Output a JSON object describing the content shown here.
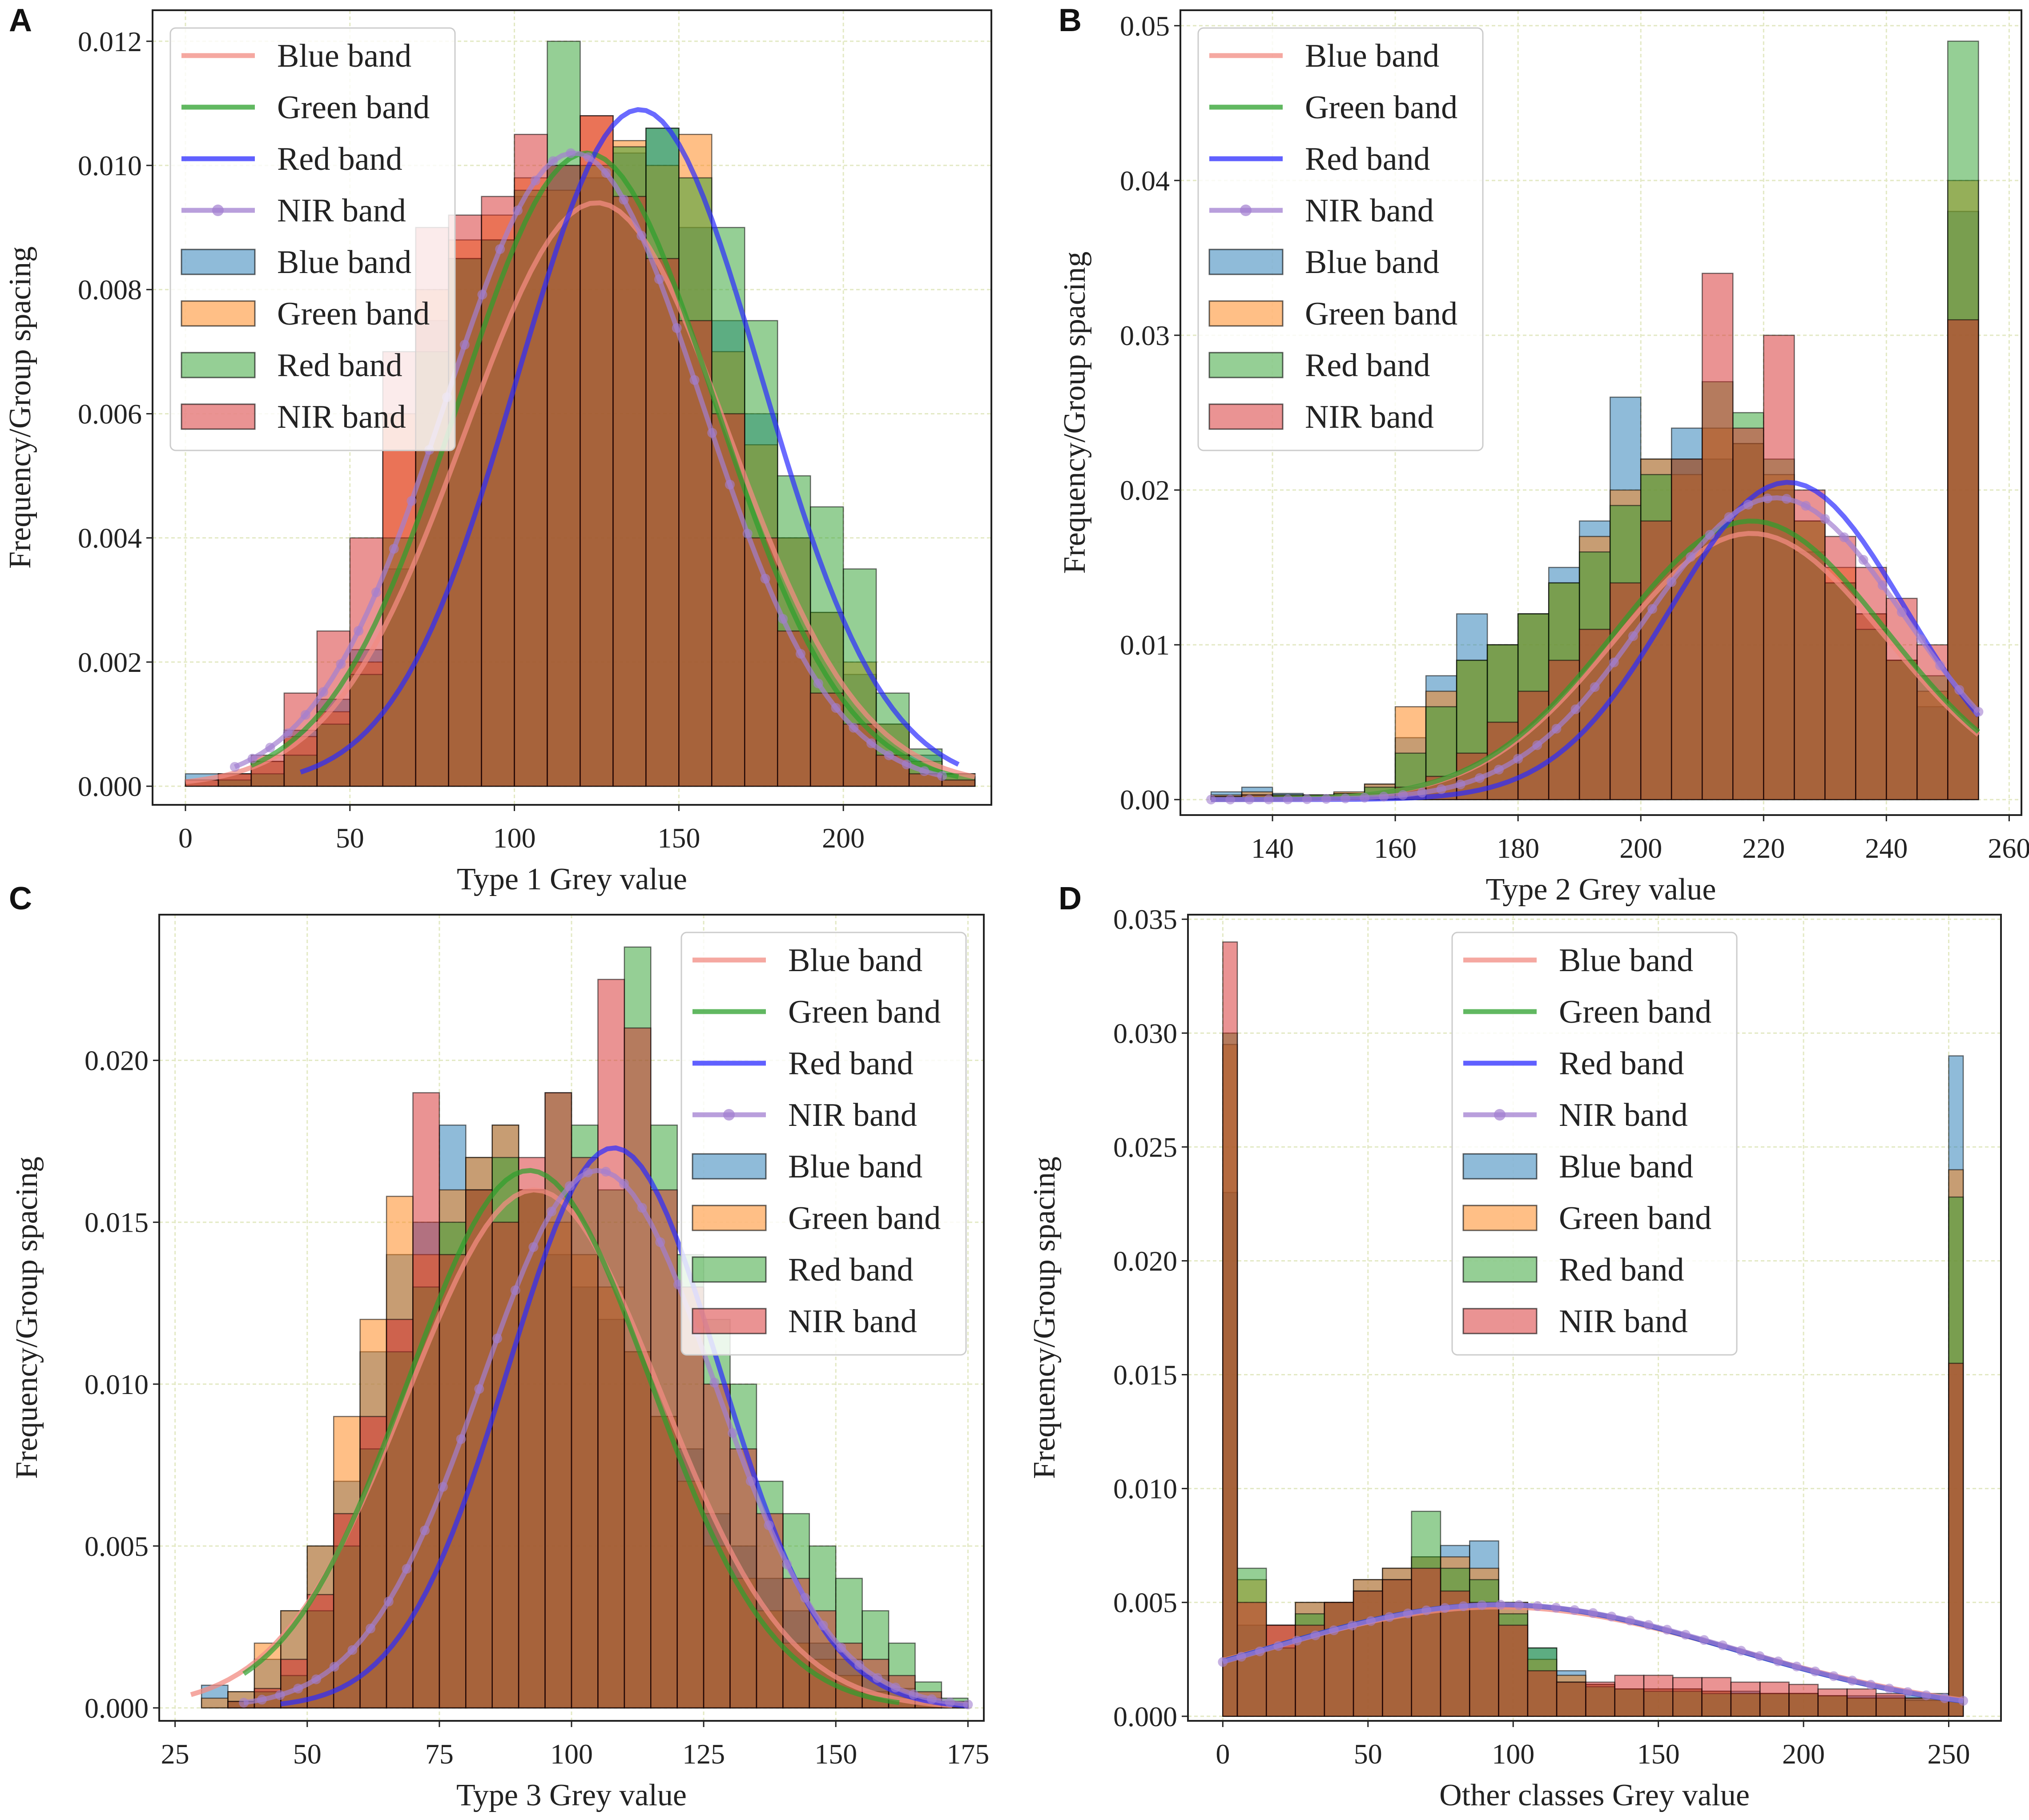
{
  "colors": {
    "hist": [
      "#1f77b4",
      "#ff7f0e",
      "#2ca02c",
      "#d62728"
    ],
    "curve": [
      "#f28b82",
      "#2ca02c",
      "#2b2bff",
      "#a27fd0"
    ],
    "grid": "#e3e9c4"
  },
  "chart_data": [
    {
      "panel": "A",
      "type": "bar",
      "xlabel": "Type 1 Grey value",
      "ylabel": "Frequency/Group spacing",
      "xlim": [
        -10,
        245
      ],
      "ylim": [
        -0.0003,
        0.0125
      ],
      "xticks": [
        "0",
        "50",
        "100",
        "150",
        "200"
      ],
      "yticks": [
        "0.000",
        "0.002",
        "0.004",
        "0.006",
        "0.008",
        "0.010",
        "0.012"
      ],
      "legend_position": "upper-left",
      "legend": [
        "Blue band",
        "Green band",
        "Red band",
        "NIR band",
        "Blue band",
        "Green band",
        "Red band",
        "NIR band"
      ],
      "bin_edges": [
        0,
        10,
        20,
        30,
        40,
        50,
        60,
        70,
        80,
        90,
        100,
        110,
        120,
        130,
        140,
        150,
        160,
        170,
        180,
        190,
        200,
        210,
        220,
        230,
        240
      ],
      "hist_series": [
        {
          "name": "Blue band",
          "values": [
            0.0002,
            0.0002,
            0.0004,
            0.0009,
            0.0014,
            0.0022,
            0.0035,
            0.0075,
            0.0085,
            0.0088,
            0.0095,
            0.01,
            0.0098,
            0.0102,
            0.0106,
            0.009,
            0.0075,
            0.006,
            0.004,
            0.0028,
            0.0018,
            0.001,
            0.0005,
            0.0002
          ]
        },
        {
          "name": "Green band",
          "values": [
            0.0001,
            0.0002,
            0.0004,
            0.0008,
            0.0012,
            0.002,
            0.006,
            0.008,
            0.0088,
            0.0092,
            0.0098,
            0.0096,
            0.0108,
            0.0104,
            0.01,
            0.0105,
            0.007,
            0.0055,
            0.004,
            0.0028,
            0.002,
            0.001,
            0.0004,
            0.0002
          ]
        },
        {
          "name": "Red band",
          "values": [
            0,
            0.0001,
            0.0002,
            0.0005,
            0.001,
            0.0018,
            0.004,
            0.007,
            0.0085,
            0.0088,
            0.0096,
            0.012,
            0.01,
            0.0103,
            0.0106,
            0.0098,
            0.009,
            0.0075,
            0.005,
            0.0045,
            0.0035,
            0.0015,
            0.0006,
            0.0002
          ]
        },
        {
          "name": "NIR band",
          "values": [
            0.0001,
            0.0002,
            0.0005,
            0.0015,
            0.0025,
            0.004,
            0.007,
            0.009,
            0.0092,
            0.0095,
            0.0105,
            0.01,
            0.0108,
            0.0095,
            0.0085,
            0.0075,
            0.006,
            0.004,
            0.0025,
            0.0015,
            0.001,
            0.0005,
            0.0002,
            0.0001
          ]
        }
      ],
      "fit_curves": [
        {
          "name": "Blue band",
          "mean": 125,
          "std": 40,
          "peak": 0.0094,
          "x_range": [
            0,
            240
          ]
        },
        {
          "name": "Green band",
          "mean": 122,
          "std": 39,
          "peak": 0.0102,
          "x_range": [
            20,
            235
          ]
        },
        {
          "name": "Red band",
          "mean": 138,
          "std": 37,
          "peak": 0.0109,
          "x_range": [
            35,
            235
          ]
        },
        {
          "name": "NIR band",
          "mean": 118,
          "std": 39,
          "peak": 0.0102,
          "x_range": [
            15,
            230
          ]
        }
      ]
    },
    {
      "panel": "B",
      "type": "bar",
      "xlabel": "Type 2 Grey value",
      "ylabel": "Frequency/Group spacing",
      "xlim": [
        125,
        262
      ],
      "ylim": [
        -0.001,
        0.051
      ],
      "xticks": [
        "140",
        "160",
        "180",
        "200",
        "220",
        "240",
        "260"
      ],
      "yticks": [
        "0.00",
        "0.01",
        "0.02",
        "0.03",
        "0.04",
        "0.05"
      ],
      "legend_position": "upper-left",
      "legend": [
        "Blue band",
        "Green band",
        "Red band",
        "NIR band",
        "Blue band",
        "Green band",
        "Red band",
        "NIR band"
      ],
      "bin_edges": [
        130,
        135,
        140,
        145,
        150,
        155,
        160,
        165,
        170,
        175,
        180,
        185,
        190,
        195,
        200,
        205,
        210,
        215,
        220,
        225,
        230,
        235,
        240,
        245,
        250,
        255
      ],
      "hist_series": [
        {
          "name": "Blue band",
          "values": [
            0.0005,
            0.0008,
            0.0004,
            0.0003,
            0.0004,
            0.001,
            0.004,
            0.008,
            0.012,
            0.01,
            0.012,
            0.015,
            0.018,
            0.026,
            0.022,
            0.024,
            0.022,
            0.023,
            0.02,
            0.016,
            0.014,
            0.012,
            0.009,
            0.006,
            0.038
          ]
        },
        {
          "name": "Green band",
          "values": [
            0.0003,
            0.0005,
            0.0003,
            0.0003,
            0.0005,
            0.001,
            0.006,
            0.007,
            0.009,
            0.01,
            0.012,
            0.014,
            0.017,
            0.02,
            0.022,
            0.021,
            0.024,
            0.023,
            0.021,
            0.018,
            0.015,
            0.012,
            0.009,
            0.007,
            0.04
          ]
        },
        {
          "name": "Red band",
          "values": [
            0.0002,
            0.0003,
            0.0003,
            0.0003,
            0.0004,
            0.0008,
            0.003,
            0.006,
            0.009,
            0.01,
            0.012,
            0.014,
            0.016,
            0.019,
            0.021,
            0.022,
            0.027,
            0.025,
            0.022,
            0.018,
            0.014,
            0.011,
            0.009,
            0.008,
            0.049
          ]
        },
        {
          "name": "NIR band",
          "values": [
            0.0002,
            0.0003,
            0.0002,
            0.0002,
            0.0003,
            0.0004,
            0.0008,
            0.0015,
            0.003,
            0.005,
            0.007,
            0.009,
            0.011,
            0.014,
            0.018,
            0.022,
            0.034,
            0.024,
            0.03,
            0.02,
            0.017,
            0.015,
            0.013,
            0.01,
            0.031
          ]
        }
      ],
      "fit_curves": [
        {
          "name": "Blue band",
          "mean": 218,
          "std": 22,
          "peak": 0.0172,
          "x_range": [
            130,
            255
          ]
        },
        {
          "name": "Green band",
          "mean": 218,
          "std": 22,
          "peak": 0.018,
          "x_range": [
            130,
            255
          ]
        },
        {
          "name": "Red band",
          "mean": 224,
          "std": 19,
          "peak": 0.0205,
          "x_range": [
            130,
            255
          ]
        },
        {
          "name": "NIR band",
          "mean": 222,
          "std": 21,
          "peak": 0.0195,
          "x_range": [
            130,
            255
          ]
        }
      ]
    },
    {
      "panel": "C",
      "type": "bar",
      "xlabel": "Type 3 Grey value",
      "ylabel": "Frequency/Group spacing",
      "xlim": [
        22,
        178
      ],
      "ylim": [
        -0.0004,
        0.0245
      ],
      "xticks": [
        "25",
        "50",
        "75",
        "100",
        "125",
        "150",
        "175"
      ],
      "yticks": [
        "0.000",
        "0.005",
        "0.010",
        "0.015",
        "0.020"
      ],
      "legend_position": "upper-right",
      "legend": [
        "Blue band",
        "Green band",
        "Red band",
        "NIR band",
        "Blue band",
        "Green band",
        "Red band",
        "NIR band"
      ],
      "bin_edges": [
        30,
        35,
        40,
        45,
        50,
        55,
        60,
        65,
        70,
        75,
        80,
        85,
        90,
        95,
        100,
        105,
        110,
        115,
        120,
        125,
        130,
        135,
        140,
        145,
        150,
        155,
        160,
        165,
        170,
        175
      ],
      "hist_series": [
        {
          "name": "Blue band",
          "values": [
            0.0007,
            0.0005,
            0.0015,
            0.003,
            0.005,
            0.007,
            0.011,
            0.014,
            0.015,
            0.018,
            0.017,
            0.018,
            0.016,
            0.014,
            0.013,
            0.012,
            0.011,
            0.009,
            0.008,
            0.006,
            0.005,
            0.004,
            0.003,
            0.002,
            0.0015,
            0.001,
            0.0006,
            0.0003,
            0.0001
          ]
        },
        {
          "name": "Green band",
          "values": [
            0.0003,
            0.0005,
            0.002,
            0.003,
            0.005,
            0.009,
            0.012,
            0.0158,
            0.014,
            0.016,
            0.017,
            0.018,
            0.016,
            0.015,
            0.014,
            0.013,
            0.011,
            0.009,
            0.007,
            0.005,
            0.004,
            0.003,
            0.002,
            0.0015,
            0.001,
            0.0005,
            0.0003,
            0.0001,
            0
          ]
        },
        {
          "name": "Red band",
          "values": [
            0,
            0.0002,
            0.0005,
            0.001,
            0.003,
            0.005,
            0.008,
            0.011,
            0.013,
            0.015,
            0.016,
            0.017,
            0.016,
            0.019,
            0.018,
            0.016,
            0.0235,
            0.018,
            0.014,
            0.012,
            0.01,
            0.007,
            0.006,
            0.005,
            0.004,
            0.003,
            0.002,
            0.0008,
            0.0003
          ]
        },
        {
          "name": "NIR band",
          "values": [
            0,
            0.0002,
            0.0006,
            0.0015,
            0.0035,
            0.006,
            0.009,
            0.012,
            0.019,
            0.014,
            0.016,
            0.015,
            0.017,
            0.019,
            0.017,
            0.0225,
            0.021,
            0.016,
            0.013,
            0.01,
            0.008,
            0.006,
            0.004,
            0.003,
            0.002,
            0.0015,
            0.001,
            0.0005,
            0.0002
          ]
        }
      ],
      "fit_curves": [
        {
          "name": "Blue band",
          "mean": 93,
          "std": 24,
          "peak": 0.016,
          "x_range": [
            28,
            172
          ]
        },
        {
          "name": "Green band",
          "mean": 92,
          "std": 23,
          "peak": 0.0166,
          "x_range": [
            38,
            162
          ]
        },
        {
          "name": "Red band",
          "mean": 108,
          "std": 20,
          "peak": 0.0173,
          "x_range": [
            45,
            175
          ]
        },
        {
          "name": "NIR band",
          "mean": 105,
          "std": 22,
          "peak": 0.0166,
          "x_range": [
            38,
            175
          ]
        }
      ]
    },
    {
      "panel": "D",
      "type": "bar",
      "xlabel": "Other classes Grey value",
      "ylabel": "Frequency/Group spacing",
      "xlim": [
        -12,
        268
      ],
      "ylim": [
        -0.0002,
        0.0352
      ],
      "xticks": [
        "0",
        "50",
        "100",
        "150",
        "200",
        "250"
      ],
      "yticks": [
        "0.000",
        "0.005",
        "0.010",
        "0.015",
        "0.020",
        "0.025",
        "0.030",
        "0.035"
      ],
      "legend_position": "upper-center",
      "legend": [
        "Blue band",
        "Green band",
        "Red band",
        "NIR band",
        "Blue band",
        "Green band",
        "Red band",
        "NIR band"
      ],
      "bin_edges": [
        0,
        5,
        15,
        25,
        35,
        45,
        55,
        65,
        75,
        85,
        95,
        105,
        115,
        125,
        135,
        145,
        155,
        165,
        175,
        185,
        195,
        205,
        215,
        225,
        235,
        250,
        255
      ],
      "hist_series": [
        {
          "name": "Blue band",
          "values": [
            0.023,
            0.004,
            0.004,
            0.005,
            0.005,
            0.006,
            0.0065,
            0.007,
            0.0075,
            0.0077,
            0.005,
            0.003,
            0.002,
            0.0014,
            0.0012,
            0.0012,
            0.0012,
            0.0011,
            0.0011,
            0.001,
            0.001,
            0.0009,
            0.0009,
            0.0009,
            0.001,
            0.029
          ]
        },
        {
          "name": "Green band",
          "values": [
            0.0295,
            0.006,
            0.004,
            0.005,
            0.005,
            0.006,
            0.0065,
            0.007,
            0.007,
            0.0065,
            0.005,
            0.0025,
            0.0018,
            0.0014,
            0.0012,
            0.0012,
            0.0012,
            0.0011,
            0.001,
            0.001,
            0.001,
            0.0009,
            0.0008,
            0.0008,
            0.0007,
            0.024
          ]
        },
        {
          "name": "Red band",
          "values": [
            0.03,
            0.0065,
            0.003,
            0.0045,
            0.005,
            0.0055,
            0.006,
            0.009,
            0.0065,
            0.006,
            0.0045,
            0.003,
            0.0015,
            0.0013,
            0.0012,
            0.0011,
            0.0011,
            0.001,
            0.001,
            0.001,
            0.001,
            0.0009,
            0.0008,
            0.0008,
            0.0008,
            0.0228
          ]
        },
        {
          "name": "NIR band",
          "values": [
            0.034,
            0.005,
            0.004,
            0.004,
            0.005,
            0.0055,
            0.006,
            0.0065,
            0.0055,
            0.005,
            0.004,
            0.002,
            0.0015,
            0.0015,
            0.0018,
            0.0018,
            0.0017,
            0.0017,
            0.0015,
            0.0015,
            0.0014,
            0.0012,
            0.0012,
            0.001,
            0.0008,
            0.0155
          ]
        }
      ],
      "fit_curves": [
        {
          "name": "Blue band",
          "mean": 95,
          "std": 82,
          "peak": 0.0048,
          "x_range": [
            0,
            255
          ]
        },
        {
          "name": "Green band",
          "mean": 95,
          "std": 80,
          "peak": 0.0049,
          "x_range": [
            0,
            255
          ]
        },
        {
          "name": "Red band",
          "mean": 95,
          "std": 80,
          "peak": 0.0049,
          "x_range": [
            0,
            255
          ]
        },
        {
          "name": "NIR band",
          "mean": 96,
          "std": 80,
          "peak": 0.0049,
          "x_range": [
            0,
            255
          ]
        }
      ]
    }
  ]
}
